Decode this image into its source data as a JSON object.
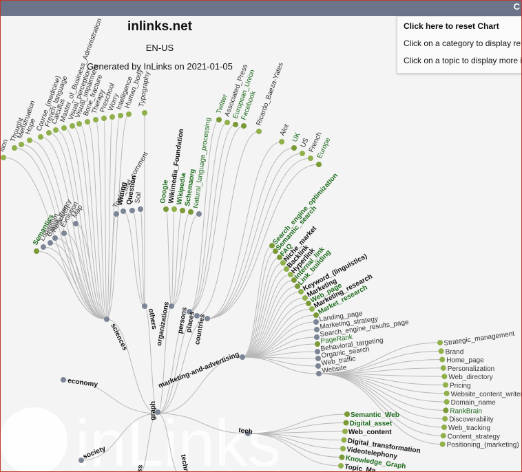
{
  "header": {
    "title": "inlinks.net",
    "locale": "EN-US",
    "generated": "Generated by InLinks on 2021-01-05",
    "close": "C"
  },
  "panel": {
    "reset": "Click here to reset Chart",
    "category_hint": "Click on a category to display rela",
    "topic_hint": "Click on a topic to display more in"
  },
  "watermark": "inLinks",
  "colors": {
    "topic": "#7a9a36",
    "topic_alt": "#8fb04a",
    "category": "#7c8596",
    "link": "#b8b8b8",
    "topbar": "#6b7488",
    "green_text": "#1e6b1e"
  },
  "categories": [
    "graph",
    "sciences",
    "others",
    "organizations",
    "persons",
    "places",
    "countries",
    "marketing-and-advertising",
    "economy",
    "tech",
    "society",
    "technology",
    "ss"
  ],
  "groups": {
    "sciences": [
      "ition",
      "Thought",
      "Menstruation",
      "Hope",
      "Course_(medicine)",
      "French_language",
      "Calculus",
      "Master_of_Business_Administration",
      "Visual_perception",
      "Visual_impairment",
      "Bone_fracture",
      "Therapy",
      "Preschool",
      "Worry",
      "Intelligence",
      "Human_body",
      "Topic_and_comment",
      "Map",
      "Evolution",
      "Research",
      "Graph_theory",
      "Logarithm",
      "Semantics"
    ],
    "others": [
      "Typography",
      "Writing",
      "Question",
      "Soil"
    ],
    "organizations": [
      "Google",
      "Wikimedia_Foundation",
      "Wikipedia",
      "Schemaorg",
      "Natural_language_processing"
    ],
    "persons": [
      "Twitter",
      "Associated_Press",
      "European_Union",
      "Facebook"
    ],
    "places": [
      "Ricardo_Baeza-Yates"
    ],
    "countries": [
      "Alot",
      "UK",
      "US",
      "French",
      "Europe"
    ],
    "marketing": [
      "Search_engine_optimization",
      "Semantic_search",
      "FAQ",
      "Niche_market",
      "Backlink",
      "Hyperlink",
      "Internal_link",
      "Link_building",
      "Keyword_(linguistics)",
      "Marketing",
      "Web_page",
      "Marketing_research",
      "Market_research",
      "Landing_page",
      "Marketing_strategy",
      "Search_engine_results_page",
      "PageRank",
      "Behavioral_targeting",
      "Organic_search",
      "Web_traffic",
      "Website"
    ],
    "website": [
      "Strategic_management",
      "Brand",
      "Home_page",
      "Personalization",
      "Web_directory",
      "Pricing",
      "Website_content_writer",
      "Domain_name",
      "RankBrain",
      "Discoverability",
      "Web_tracking",
      "Content_strategy",
      "Positioning_(marketing)"
    ],
    "tech": [
      "Semantic_Web",
      "Digital_asset",
      "Web_content",
      "Digital_transformation",
      "Videotelephony",
      "Knowledge_Graph",
      "Topic_Ma"
    ]
  }
}
